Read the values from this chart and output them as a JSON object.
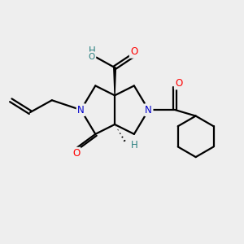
{
  "bg_color": "#eeeeee",
  "atom_colors": {
    "N": "#0000cc",
    "O": "#ff0000",
    "C": "#000000",
    "H": "#2a8080"
  },
  "bond_color": "#000000",
  "line_width": 1.6,
  "figsize": [
    3.0,
    3.0
  ],
  "dpi": 100,
  "xlim": [
    0,
    10
  ],
  "ylim": [
    0,
    10
  ]
}
